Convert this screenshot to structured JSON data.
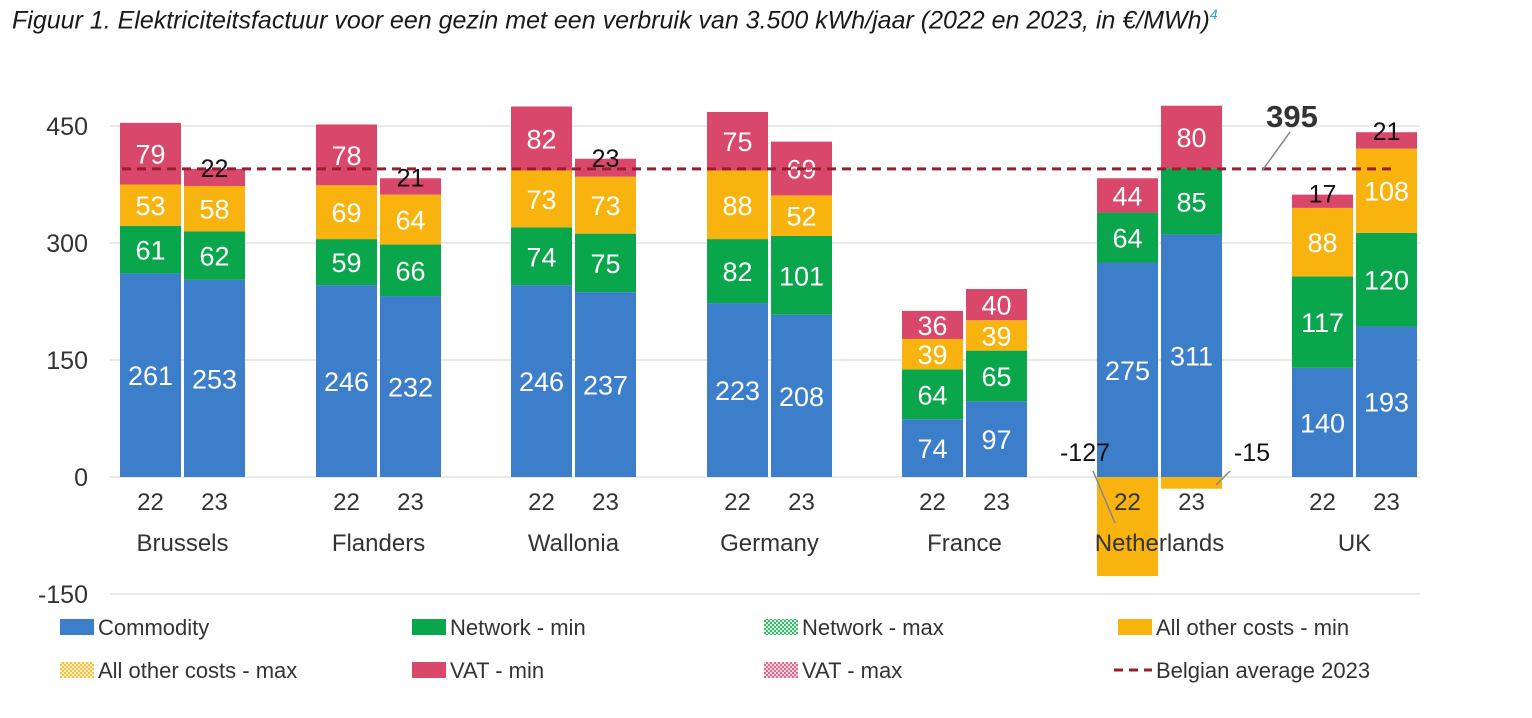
{
  "caption": {
    "text": "Figuur 1. Elektriciteitsfactuur voor een gezin met een verbruik van 3.500 kWh/jaar (2022 en 2023, in €/MWh)",
    "footnote": "4"
  },
  "chart_data": {
    "type": "bar",
    "stacked": true,
    "ylim": [
      -150,
      450
    ],
    "yticks": [
      -150,
      0,
      150,
      300,
      450
    ],
    "grid": true,
    "legend_position": "bottom",
    "groups": [
      "Brussels",
      "Flanders",
      "Wallonia",
      "Germany",
      "France",
      "Netherlands",
      "UK"
    ],
    "years": [
      "22",
      "23"
    ],
    "series": [
      {
        "name": "Commodity",
        "color": "#3d7ecb",
        "values": [
          261,
          253,
          246,
          232,
          246,
          237,
          223,
          208,
          74,
          97,
          275,
          311,
          140,
          193
        ]
      },
      {
        "name": "Network - min",
        "color": "#0aa64c",
        "values": [
          61,
          62,
          59,
          66,
          74,
          75,
          82,
          101,
          64,
          65,
          64,
          85,
          117,
          120
        ]
      },
      {
        "name": "All other costs - min",
        "color": "#f8b30f",
        "values": [
          53,
          58,
          69,
          64,
          73,
          73,
          88,
          52,
          39,
          39,
          -127,
          -15,
          88,
          108
        ]
      },
      {
        "name": "VAT - min",
        "color": "#d9476b",
        "values": [
          79,
          22,
          78,
          21,
          82,
          23,
          75,
          69,
          36,
          40,
          44,
          80,
          17,
          21
        ]
      }
    ],
    "legend": [
      {
        "name": "Commodity",
        "color": "#3d7ecb",
        "pattern": false
      },
      {
        "name": "Network - min",
        "color": "#0aa64c",
        "pattern": false
      },
      {
        "name": "Network - max",
        "color": "#0aa64c",
        "pattern": true
      },
      {
        "name": "All other costs - min",
        "color": "#f8b30f",
        "pattern": false
      },
      {
        "name": "All other costs - max",
        "color": "#f8b30f",
        "pattern": true
      },
      {
        "name": "VAT - min",
        "color": "#d9476b",
        "pattern": false
      },
      {
        "name": "VAT - max",
        "color": "#d9476b",
        "pattern": true
      },
      {
        "name": "Belgian average 2023",
        "color": "#9b1c2c",
        "dashed": true
      }
    ],
    "reference_line": {
      "value": 395,
      "label": "395",
      "color": "#9b1c2c"
    }
  }
}
